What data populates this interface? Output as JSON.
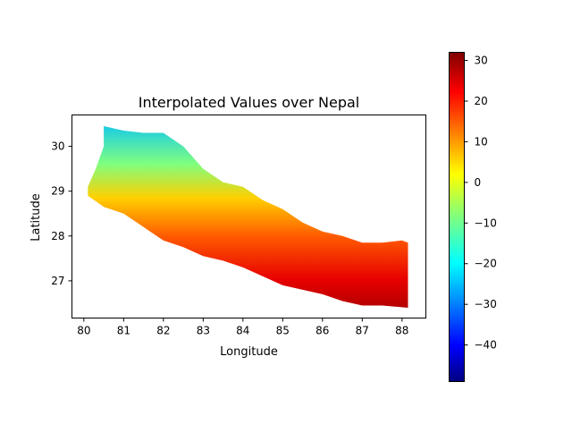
{
  "title": "Interpolated Values over Nepal",
  "xlabel": "Longitude",
  "ylabel": "Latitude",
  "colormap": "jet",
  "colors": {
    "jet": [
      "#00007f",
      "#0000ff",
      "#007fff",
      "#00ffff",
      "#7fff7f",
      "#ffff00",
      "#ff7f00",
      "#ff0000",
      "#7f0000"
    ]
  },
  "chart_data": {
    "type": "heatmap",
    "title": "Interpolated Values over Nepal",
    "xlabel": "Longitude",
    "ylabel": "Latitude",
    "xlim": [
      79.7,
      88.6
    ],
    "ylim": [
      26.17,
      30.7
    ],
    "xticks": [
      "80",
      "81",
      "82",
      "83",
      "84",
      "85",
      "86",
      "87",
      "88"
    ],
    "yticks": [
      "27",
      "28",
      "29",
      "30"
    ],
    "colorbar": {
      "range": [
        -49,
        32
      ],
      "ticks": [
        "30",
        "20",
        "10",
        "0",
        "−10",
        "−20",
        "−30",
        "−40"
      ]
    },
    "region_outline": {
      "north": [
        [
          80.5,
          30.45
        ],
        [
          81.0,
          30.35
        ],
        [
          81.5,
          30.3
        ],
        [
          82.0,
          30.3
        ],
        [
          82.5,
          30.0
        ],
        [
          83.0,
          29.5
        ],
        [
          83.5,
          29.2
        ],
        [
          84.0,
          29.1
        ],
        [
          84.5,
          28.8
        ],
        [
          85.0,
          28.6
        ],
        [
          85.5,
          28.3
        ],
        [
          86.0,
          28.1
        ],
        [
          86.5,
          28.0
        ],
        [
          87.0,
          27.85
        ],
        [
          87.5,
          27.85
        ],
        [
          88.0,
          27.9
        ],
        [
          88.15,
          27.85
        ]
      ],
      "south": [
        [
          88.15,
          26.4
        ],
        [
          87.5,
          26.45
        ],
        [
          87.0,
          26.45
        ],
        [
          86.5,
          26.55
        ],
        [
          86.0,
          26.7
        ],
        [
          85.5,
          26.8
        ],
        [
          85.0,
          26.9
        ],
        [
          84.5,
          27.1
        ],
        [
          84.0,
          27.3
        ],
        [
          83.5,
          27.45
        ],
        [
          83.0,
          27.55
        ],
        [
          82.5,
          27.75
        ],
        [
          82.0,
          27.9
        ],
        [
          81.5,
          28.2
        ],
        [
          81.0,
          28.5
        ],
        [
          80.5,
          28.65
        ],
        [
          80.1,
          28.9
        ],
        [
          80.1,
          29.1
        ],
        [
          80.3,
          29.5
        ],
        [
          80.5,
          30.0
        ]
      ]
    }
  }
}
